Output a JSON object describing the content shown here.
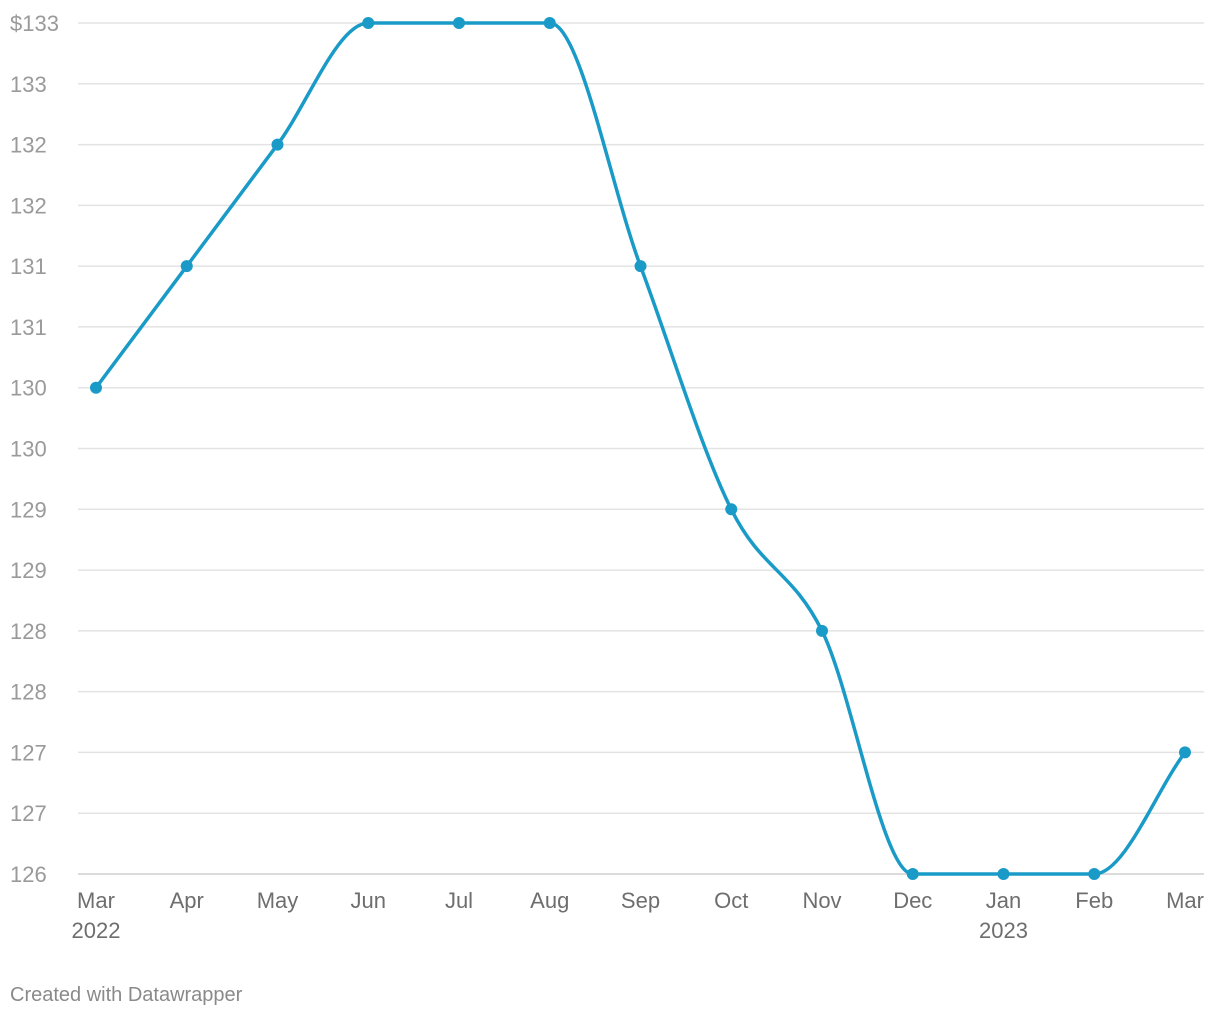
{
  "chart_data": {
    "type": "line",
    "categories": [
      "Mar 2022",
      "Apr 2022",
      "May 2022",
      "Jun 2022",
      "Jul 2022",
      "Aug 2022",
      "Sep 2022",
      "Oct 2022",
      "Nov 2022",
      "Dec 2022",
      "Jan 2023",
      "Feb 2023",
      "Mar 2023"
    ],
    "x_tick_labels": [
      "Mar",
      "Apr",
      "May",
      "Jun",
      "Jul",
      "Aug",
      "Sep",
      "Oct",
      "Nov",
      "Dec",
      "Jan",
      "Feb",
      "Mar"
    ],
    "x_year_labels": [
      {
        "index": 0,
        "label": "2022"
      },
      {
        "index": 10,
        "label": "2023"
      }
    ],
    "series": [
      {
        "values": [
          130.0,
          131.0,
          132.0,
          133.0,
          133.0,
          133.0,
          131.0,
          129.0,
          128.0,
          126.0,
          126.0,
          126.0,
          127.0
        ]
      }
    ],
    "ylim": [
      126,
      133
    ],
    "y_ticks": [
      {
        "value": 133.0,
        "label": "$133"
      },
      {
        "value": 132.5,
        "label": "133"
      },
      {
        "value": 132.0,
        "label": "132"
      },
      {
        "value": 131.5,
        "label": "132"
      },
      {
        "value": 131.0,
        "label": "131"
      },
      {
        "value": 130.5,
        "label": "131"
      },
      {
        "value": 130.0,
        "label": "130"
      },
      {
        "value": 129.5,
        "label": "130"
      },
      {
        "value": 129.0,
        "label": "129"
      },
      {
        "value": 128.5,
        "label": "129"
      },
      {
        "value": 128.0,
        "label": "128"
      },
      {
        "value": 127.5,
        "label": "128"
      },
      {
        "value": 127.0,
        "label": "127"
      },
      {
        "value": 126.5,
        "label": "127"
      },
      {
        "value": 126.0,
        "label": "126"
      }
    ],
    "grid": true,
    "line_color": "#1a9bc7",
    "title": "",
    "xlabel": "",
    "ylabel": ""
  },
  "footer": {
    "credit": "Created with Datawrapper"
  }
}
